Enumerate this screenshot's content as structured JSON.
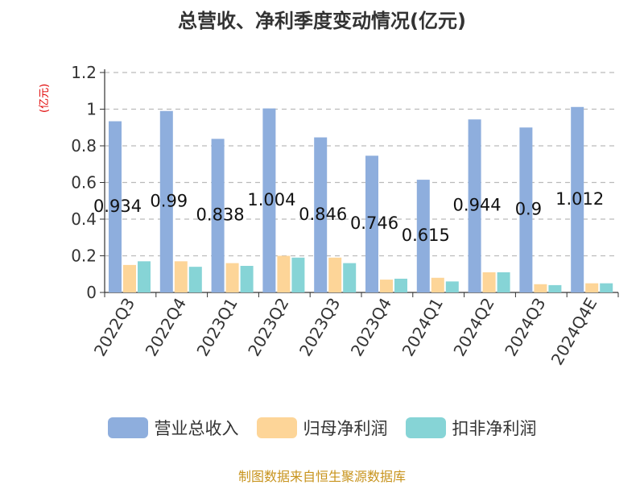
{
  "chart_data": {
    "type": "bar",
    "title": "总营收、净利季度变动情况(亿元)",
    "ylabel": "(亿元)",
    "xlabel": "",
    "ylim": [
      0,
      1.2
    ],
    "yticks": [
      "0",
      "0.2",
      "0.4",
      "0.6",
      "0.8",
      "1",
      "1.2"
    ],
    "grid": true,
    "legend_position": "bottom",
    "categories": [
      "2022Q3",
      "2022Q4",
      "2023Q1",
      "2023Q2",
      "2023Q3",
      "2023Q4",
      "2024Q1",
      "2024Q2",
      "2024Q3",
      "2024Q4E"
    ],
    "series": [
      {
        "name": "营业总收入",
        "color": "#8eaedd",
        "values": [
          0.934,
          0.99,
          0.838,
          1.004,
          0.846,
          0.746,
          0.615,
          0.944,
          0.9,
          1.012
        ],
        "labels": [
          "0.934",
          "0.99",
          "0.838",
          "1.004",
          "0.846",
          "0.746",
          "0.615",
          "0.944",
          "0.9",
          "1.012"
        ]
      },
      {
        "name": "归母净利润",
        "color": "#fdd598",
        "values": [
          0.15,
          0.17,
          0.16,
          0.2,
          0.19,
          0.07,
          0.08,
          0.11,
          0.045,
          0.05
        ]
      },
      {
        "name": "扣非净利润",
        "color": "#86d4d6",
        "values": [
          0.17,
          0.14,
          0.145,
          0.19,
          0.16,
          0.075,
          0.06,
          0.11,
          0.04,
          0.05
        ]
      }
    ]
  },
  "source": "制图数据来自恒生聚源数据库"
}
